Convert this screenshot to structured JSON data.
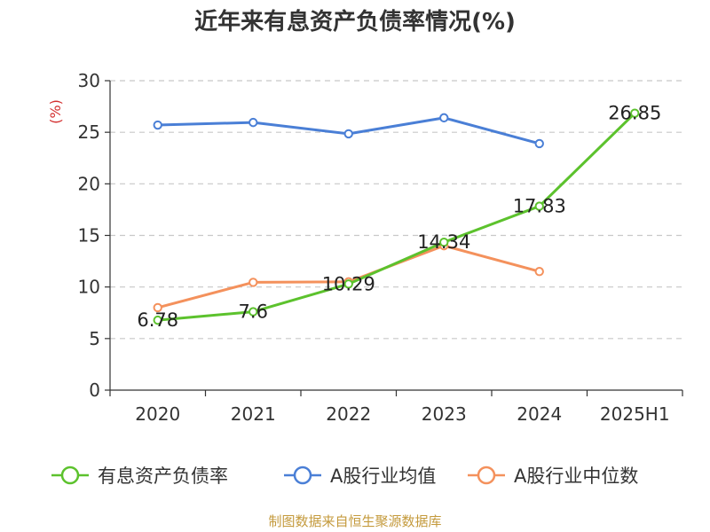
{
  "footer": {
    "source": "制图数据来自恒生聚源数据库"
  },
  "chart_data": {
    "type": "line",
    "title": "近年来有息资产负债率情况(%)",
    "xlabel": "",
    "ylabel": "(%)",
    "ylim": [
      0,
      30
    ],
    "yticks": [
      0,
      5,
      10,
      15,
      20,
      25,
      30
    ],
    "grid": true,
    "legend_position": "bottom",
    "categories": [
      "2020",
      "2021",
      "2022",
      "2023",
      "2024",
      "2025H1"
    ],
    "series": [
      {
        "name": "有息资产负债率",
        "color": "#5cc22d",
        "values": [
          6.78,
          7.6,
          10.29,
          14.34,
          17.83,
          26.85
        ],
        "labels": [
          "6.78",
          "7.6",
          "10.29",
          "14.34",
          "17.83",
          "26.85"
        ],
        "show_labels": true
      },
      {
        "name": "A股行业均值",
        "color": "#4a7fd6",
        "values": [
          25.7,
          25.95,
          24.85,
          26.4,
          23.9,
          null
        ],
        "show_labels": false
      },
      {
        "name": "A股行业中位数",
        "color": "#f4915c",
        "values": [
          8.0,
          10.45,
          10.5,
          14.0,
          11.5,
          null
        ],
        "show_labels": false
      }
    ]
  }
}
